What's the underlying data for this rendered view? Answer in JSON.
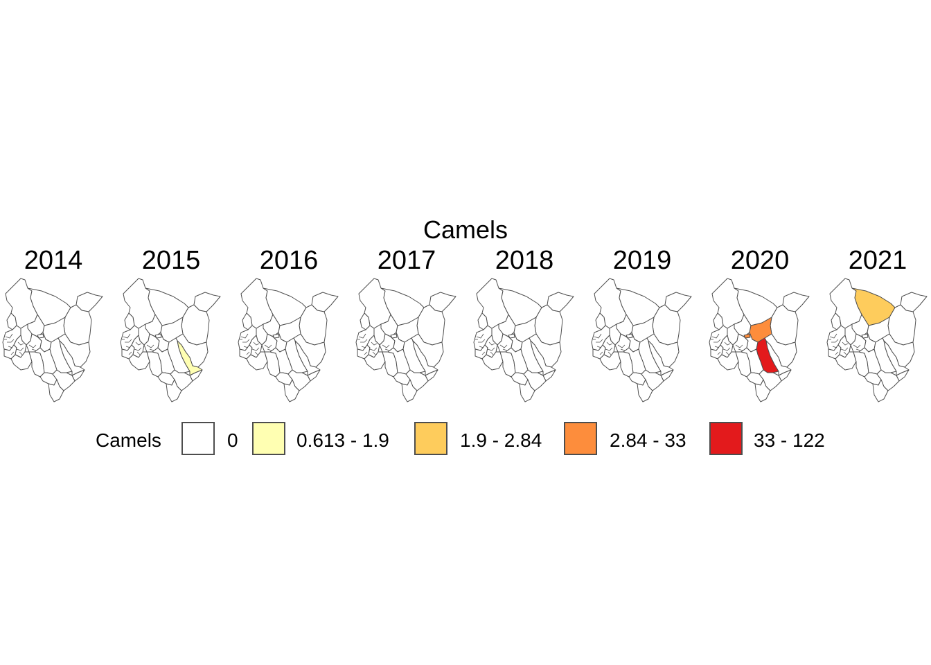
{
  "title": "Camels",
  "panels": [
    {
      "year": "2014",
      "fills": {}
    },
    {
      "year": "2015",
      "fills": {
        "tana_river": "#ffffb2"
      }
    },
    {
      "year": "2016",
      "fills": {}
    },
    {
      "year": "2017",
      "fills": {}
    },
    {
      "year": "2018",
      "fills": {}
    },
    {
      "year": "2019",
      "fills": {}
    },
    {
      "year": "2020",
      "fills": {
        "isiolo": "#fd8d3c",
        "samburu_spot": "#fd8d3c",
        "kitui_tana_east": "#e31a1c"
      }
    },
    {
      "year": "2021",
      "fills": {
        "marsabit": "#fecc5c"
      }
    }
  ],
  "legend": {
    "title": "Camels",
    "items": [
      {
        "label": "0",
        "color": "#ffffff"
      },
      {
        "label": "0.613 - 1.9",
        "color": "#ffffb2"
      },
      {
        "label": "1.9 - 2.84",
        "color": "#fecc5c"
      },
      {
        "label": "2.84 - 33",
        "color": "#fd8d3c"
      },
      {
        "label": "33 - 122",
        "color": "#e31a1c"
      }
    ]
  }
}
